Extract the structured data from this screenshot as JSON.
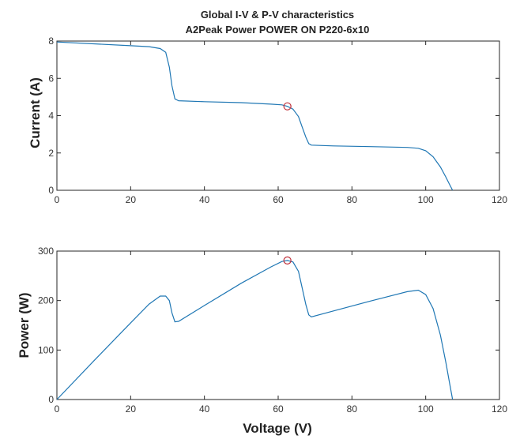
{
  "colors": {
    "curve": "#1f77b4",
    "marker": "#c0303a",
    "axis": "#262626"
  },
  "chart_data": [
    {
      "type": "line",
      "title_line1": "Global I-V & P-V characteristics",
      "title_line2": "A2Peak Power POWER ON P220-6x10",
      "xlabel": "",
      "ylabel": "Current (A)",
      "xlim": [
        0,
        120
      ],
      "ylim": [
        0,
        8
      ],
      "xticks": [
        "0",
        "20",
        "40",
        "60",
        "80",
        "100",
        "120"
      ],
      "yticks": [
        "0",
        "2",
        "4",
        "6",
        "8"
      ],
      "series": [
        {
          "x": [
            0,
            10,
            20,
            25,
            28,
            29.5,
            30.5,
            31.2,
            32,
            33,
            40,
            50,
            58,
            61,
            62.5,
            64,
            65.5,
            66.5,
            67.5,
            68.3,
            69,
            75,
            85,
            95,
            98,
            100,
            102,
            104,
            105.5,
            106.5,
            107.3
          ],
          "y": [
            7.95,
            7.85,
            7.75,
            7.7,
            7.6,
            7.4,
            6.6,
            5.6,
            4.9,
            4.8,
            4.75,
            4.7,
            4.62,
            4.58,
            4.5,
            4.35,
            3.95,
            3.4,
            2.85,
            2.5,
            2.42,
            2.38,
            2.34,
            2.3,
            2.25,
            2.12,
            1.8,
            1.25,
            0.7,
            0.3,
            0.0
          ]
        }
      ],
      "mpp": {
        "x": 62.5,
        "y": 4.5
      }
    },
    {
      "type": "line",
      "xlabel": "Voltage (V)",
      "ylabel": "Power (W)",
      "xlim": [
        0,
        120
      ],
      "ylim": [
        0,
        300
      ],
      "xticks": [
        "0",
        "20",
        "40",
        "60",
        "80",
        "100",
        "120"
      ],
      "yticks": [
        "0",
        "100",
        "200",
        "300"
      ],
      "series": [
        {
          "x": [
            0,
            10,
            20,
            25,
            28,
            29.5,
            30.5,
            31.2,
            32,
            33,
            40,
            50,
            58,
            61,
            62.5,
            64,
            65.5,
            66.5,
            67.5,
            68.3,
            69,
            75,
            85,
            95,
            98,
            100,
            102,
            104,
            105.5,
            106.5,
            107.3
          ],
          "y": [
            0,
            78,
            155,
            193,
            209,
            209,
            200,
            175,
            157,
            158,
            190,
            235,
            268,
            279,
            281,
            278,
            259,
            226,
            192,
            171,
            167,
            179,
            199,
            218,
            221,
            212,
            184,
            130,
            74,
            32,
            0
          ]
        }
      ],
      "mpp": {
        "x": 62.5,
        "y": 281
      }
    }
  ]
}
